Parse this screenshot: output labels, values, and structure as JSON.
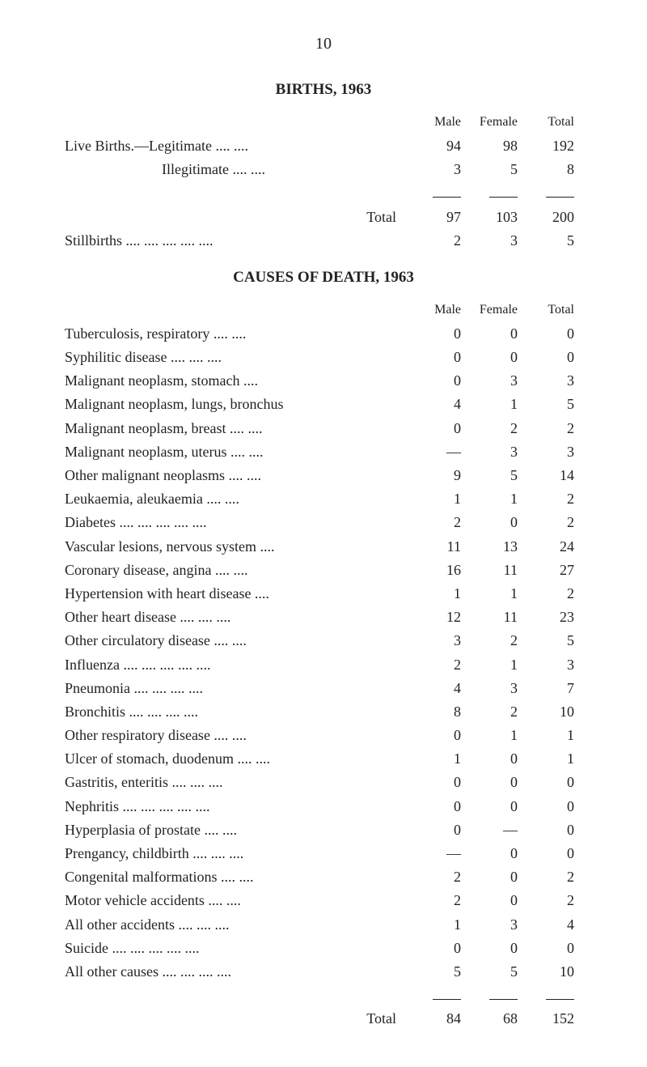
{
  "page_number": "10",
  "births": {
    "title": "BIRTHS, 1963",
    "headers": {
      "male": "Male",
      "female": "Female",
      "total": "Total"
    },
    "rows": [
      {
        "label": "Live Births.—Legitimate    ....    ....",
        "male": "94",
        "female": "98",
        "total": "192"
      },
      {
        "label": "Illegitimate    ....    ....",
        "male": "3",
        "female": "5",
        "total": "8",
        "indent": true
      }
    ],
    "total_label": "Total",
    "total_row": {
      "male": "97",
      "female": "103",
      "total": "200"
    },
    "stillbirths": {
      "label": "Stillbirths ....    ....    ....    ....    ....",
      "male": "2",
      "female": "3",
      "total": "5"
    }
  },
  "causes": {
    "title": "CAUSES OF DEATH, 1963",
    "headers": {
      "male": "Male",
      "female": "Female",
      "total": "Total"
    },
    "rows": [
      {
        "label": "Tuberculosis, respiratory    ....    ....",
        "male": "0",
        "female": "0",
        "total": "0"
      },
      {
        "label": "Syphilitic disease    ....    ....    ....",
        "male": "0",
        "female": "0",
        "total": "0"
      },
      {
        "label": "Malignant neoplasm, stomach    ....",
        "male": "0",
        "female": "3",
        "total": "3"
      },
      {
        "label": "Malignant neoplasm, lungs, bronchus",
        "male": "4",
        "female": "1",
        "total": "5"
      },
      {
        "label": "Malignant neoplasm, breast   ....    ....",
        "male": "0",
        "female": "2",
        "total": "2"
      },
      {
        "label": "Malignant neoplasm, uterus  ....    ....",
        "male": "—",
        "female": "3",
        "total": "3"
      },
      {
        "label": "Other malignant neoplasms  ....    ....",
        "male": "9",
        "female": "5",
        "total": "14"
      },
      {
        "label": "Leukaemia, aleukaemia    ....    ....",
        "male": "1",
        "female": "1",
        "total": "2"
      },
      {
        "label": "Diabetes   ....    ....    ....    ....    ....",
        "male": "2",
        "female": "0",
        "total": "2"
      },
      {
        "label": "Vascular lesions, nervous system    ....",
        "male": "11",
        "female": "13",
        "total": "24"
      },
      {
        "label": "Coronary disease, angina    ....    ....",
        "male": "16",
        "female": "11",
        "total": "27"
      },
      {
        "label": "Hypertension with heart disease    ....",
        "male": "1",
        "female": "1",
        "total": "2"
      },
      {
        "label": "Other heart disease    ....    ....    ....",
        "male": "12",
        "female": "11",
        "total": "23"
      },
      {
        "label": "Other circulatory disease    ....    ....",
        "male": "3",
        "female": "2",
        "total": "5"
      },
      {
        "label": "Influenza  ....    ....    ....    ....    ....",
        "male": "2",
        "female": "1",
        "total": "3"
      },
      {
        "label": "Pneumonia    ....    ....    ....    ....",
        "male": "4",
        "female": "3",
        "total": "7"
      },
      {
        "label": "Bronchitis    ....    ....    ....    ....",
        "male": "8",
        "female": "2",
        "total": "10"
      },
      {
        "label": "Other respiratory disease    ....    ....",
        "male": "0",
        "female": "1",
        "total": "1"
      },
      {
        "label": "Ulcer of stomach, duodenum ....    ....",
        "male": "1",
        "female": "0",
        "total": "1"
      },
      {
        "label": "Gastritis, enteritis    ....    ....    ....",
        "male": "0",
        "female": "0",
        "total": "0"
      },
      {
        "label": "Nephritis  ....    ....    ....    ....    ....",
        "male": "0",
        "female": "0",
        "total": "0"
      },
      {
        "label": "Hyperplasia of prostate    ....    ....",
        "male": "0",
        "female": "—",
        "total": "0"
      },
      {
        "label": "Prengancy, childbirth    ....    ....    ....",
        "male": "—",
        "female": "0",
        "total": "0"
      },
      {
        "label": "Congenital malformations    ....    ....",
        "male": "2",
        "female": "0",
        "total": "2"
      },
      {
        "label": "Motor vehicle accidents    ....    ....",
        "male": "2",
        "female": "0",
        "total": "2"
      },
      {
        "label": "All other accidents    ....    ....    ....",
        "male": "1",
        "female": "3",
        "total": "4"
      },
      {
        "label": "Suicide    ....    ....    ....    ....    ....",
        "male": "0",
        "female": "0",
        "total": "0"
      },
      {
        "label": "All other causes ....    ....    ....    ....",
        "male": "5",
        "female": "5",
        "total": "10"
      }
    ],
    "total_label": "Total",
    "total_row": {
      "male": "84",
      "female": "68",
      "total": "152"
    }
  }
}
